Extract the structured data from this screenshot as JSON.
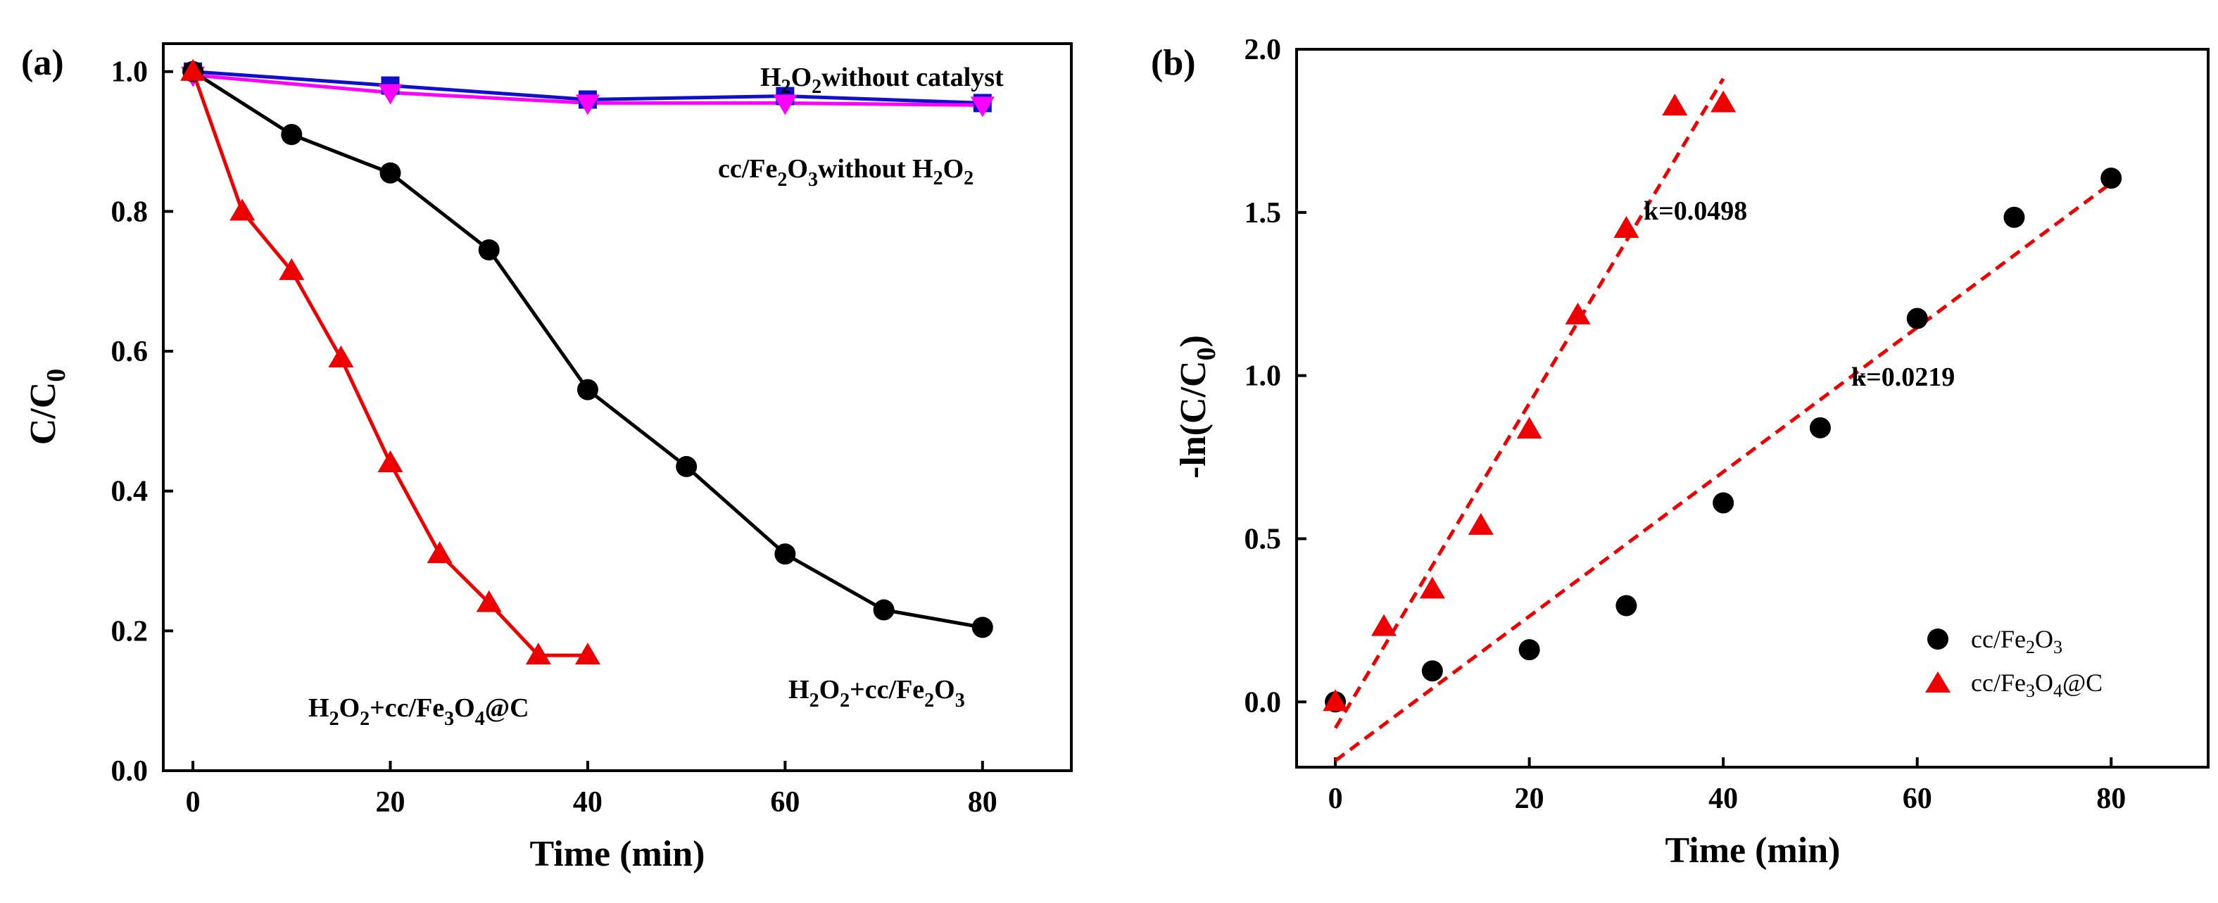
{
  "chart_data": [
    {
      "type": "line",
      "panel_label": "(a)",
      "xlabel": "Time (min)",
      "ylabel": "C/C0",
      "xlim": [
        -3,
        89
      ],
      "ylim": [
        0,
        1.04
      ],
      "xticks": [
        0,
        20,
        40,
        60,
        80
      ],
      "xtick_labels": [
        "0",
        "20",
        "40",
        "60",
        "80"
      ],
      "yticks": [
        0.0,
        0.2,
        0.4,
        0.6,
        0.8,
        1.0
      ],
      "ytick_labels": [
        "0.0",
        "0.2",
        "0.4",
        "0.6",
        "0.8",
        "1.0"
      ],
      "series": [
        {
          "name": "H2O2 without catalyst",
          "color": "#1010c8",
          "marker": "square",
          "x": [
            0,
            20,
            40,
            60,
            80
          ],
          "y": [
            1.0,
            0.98,
            0.96,
            0.965,
            0.955
          ]
        },
        {
          "name": "cc/Fe2O3 without H2O2",
          "color": "#ff00ff",
          "marker": "triangle-down",
          "x": [
            0,
            20,
            40,
            60,
            80
          ],
          "y": [
            0.995,
            0.97,
            0.955,
            0.955,
            0.952
          ]
        },
        {
          "name": "H2O2+cc/Fe2O3",
          "color": "#000000",
          "marker": "circle",
          "x": [
            0,
            10,
            20,
            30,
            40,
            50,
            60,
            70,
            80
          ],
          "y": [
            1.0,
            0.91,
            0.855,
            0.745,
            0.545,
            0.435,
            0.31,
            0.23,
            0.205
          ]
        },
        {
          "name": "H2O2+cc/Fe3O4@C",
          "color": "#ee0000",
          "marker": "triangle-up",
          "x": [
            0,
            5,
            10,
            15,
            20,
            25,
            30,
            35,
            40
          ],
          "y": [
            1.0,
            0.8,
            0.715,
            0.59,
            0.44,
            0.31,
            0.24,
            0.165,
            0.165
          ]
        }
      ],
      "annotations": {
        "no_catalyst": {
          "base": "H",
          "s1": "2",
          "m1": "O",
          "s2": "2",
          "tail": "without catalyst"
        },
        "no_h2o2": {
          "a": "cc/Fe",
          "s1": "2",
          "b": "O",
          "s2": "3",
          "c": "without H",
          "s3": "2",
          "d": "O",
          "s4": "2"
        },
        "fe2o3": {
          "a": "H",
          "s1": "2",
          "b": "O",
          "s2": "2",
          "c": "+cc/Fe",
          "s3": "2",
          "d": "O",
          "s4": "3"
        },
        "fe3o4": {
          "a": "H",
          "s1": "2",
          "b": "O",
          "s2": "2",
          "c": "+cc/Fe",
          "s3": "3",
          "d": "O",
          "s4": "4",
          "e": "@C"
        }
      }
    },
    {
      "type": "scatter",
      "panel_label": "(b)",
      "xlabel": "Time (min)",
      "ylabel": "-ln(C/C0)",
      "xlim": [
        -4,
        90
      ],
      "ylim": [
        -0.2,
        2.0
      ],
      "xticks": [
        0,
        20,
        40,
        60,
        80
      ],
      "xtick_labels": [
        "0",
        "20",
        "40",
        "60",
        "80"
      ],
      "yticks": [
        0.0,
        0.5,
        1.0,
        1.5,
        2.0
      ],
      "ytick_labels": [
        "0.0",
        "0.5",
        "1.0",
        "1.5",
        "2.0"
      ],
      "series": [
        {
          "name": "cc/Fe2O3",
          "color": "#000000",
          "marker": "circle",
          "x": [
            0,
            10,
            20,
            30,
            40,
            50,
            60,
            70,
            80
          ],
          "y": [
            0.0,
            0.095,
            0.16,
            0.295,
            0.61,
            0.84,
            1.175,
            1.485,
            1.605
          ],
          "fit": {
            "x": [
              0,
              80
            ],
            "y": [
              -0.18,
              1.59
            ]
          },
          "k_label": "k=0.0219"
        },
        {
          "name": "cc/Fe3O4@C",
          "color": "#ee0000",
          "marker": "triangle-up",
          "x": [
            0,
            5,
            10,
            15,
            20,
            25,
            30,
            35,
            40
          ],
          "y": [
            0.0,
            0.23,
            0.345,
            0.54,
            0.835,
            1.185,
            1.45,
            1.825,
            1.835
          ],
          "fit": {
            "x": [
              0,
              40
            ],
            "y": [
              -0.08,
              1.91
            ]
          },
          "k_label": "k=0.0498"
        }
      ],
      "legend": [
        {
          "base": "cc/Fe",
          "s1": "2",
          "mid": "O",
          "s2": "3"
        },
        {
          "base": "cc/Fe",
          "s1": "3",
          "mid": "O",
          "s2": "4",
          "tail": "@C"
        }
      ]
    }
  ]
}
